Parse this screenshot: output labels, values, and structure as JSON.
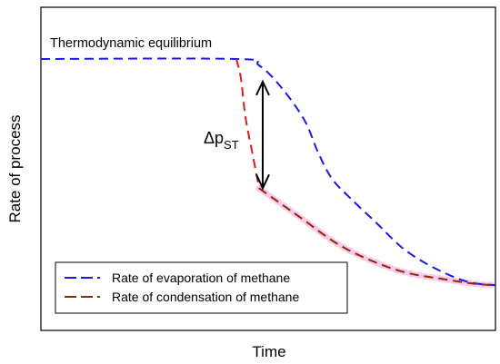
{
  "chart_data": {
    "type": "line",
    "title": "",
    "xlabel": "Time",
    "ylabel": "Rate of process",
    "xlim": [
      0,
      100
    ],
    "ylim": [
      0,
      100
    ],
    "grid": false,
    "legend_position": "bottom-left",
    "series": [
      {
        "name": "Rate of evaporation of methane",
        "color": "#1a1ae6",
        "style": "dashed",
        "points": [
          [
            0,
            84
          ],
          [
            43,
            84
          ],
          [
            48,
            82
          ],
          [
            53,
            75
          ],
          [
            58,
            65
          ],
          [
            61,
            55
          ],
          [
            64,
            47
          ],
          [
            68,
            41
          ],
          [
            74,
            33
          ],
          [
            80,
            25
          ],
          [
            87,
            19
          ],
          [
            94,
            15
          ],
          [
            100,
            14
          ]
        ]
      },
      {
        "name": "Rate of condensation of methane",
        "color": "#8b2a0a",
        "style": "dashed",
        "points": [
          [
            48,
            44
          ],
          [
            52,
            40
          ],
          [
            58,
            34
          ],
          [
            65,
            27
          ],
          [
            72,
            22
          ],
          [
            80,
            18
          ],
          [
            88,
            16
          ],
          [
            95,
            14.5
          ],
          [
            100,
            14
          ]
        ]
      },
      {
        "name": "",
        "color": "#e01a1a",
        "style": "dashed",
        "points": [
          [
            43,
            84
          ],
          [
            44,
            78
          ],
          [
            45,
            66
          ],
          [
            46.5,
            55
          ],
          [
            48,
            44
          ]
        ]
      }
    ],
    "pink_trace_color": "#f9c9ea",
    "annotations": [
      {
        "text": "Thermodynamic equilibrium",
        "kind": "label"
      },
      {
        "text": "Δp",
        "subscript": "ST",
        "kind": "double-arrow",
        "x": 48,
        "from": 44,
        "to": 77
      }
    ]
  }
}
